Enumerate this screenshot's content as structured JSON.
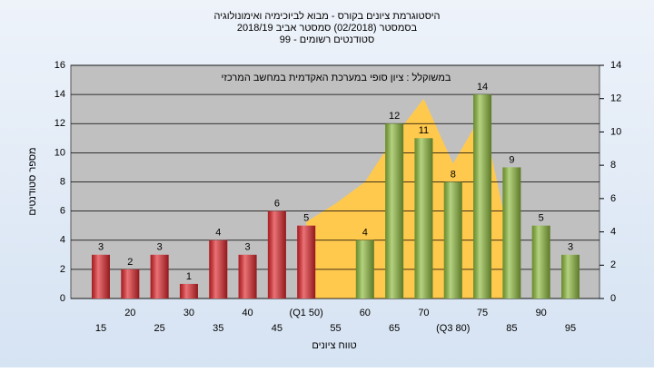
{
  "chart_data": {
    "type": "bar",
    "title": [
      "היסטוגרמת ציונים בקורס - מבוא לביוכימיה ואימונולוגיה",
      "בסמסטר  (02/2018)  סמסטר אביב 2018/19",
      "סטודנטים רשומים - 99"
    ],
    "annotation": "במשוקלל : ציון סופי במערכת האקדמית במחשב המרכזי",
    "y_label": "מספר סטודנטים",
    "x_label": "טווח ציונים",
    "categories": [
      "15",
      "20",
      "25",
      "30",
      "35",
      "40",
      "45",
      "(Q1 50)",
      "55",
      "60",
      "65",
      "70",
      "(Q3 80)",
      "75",
      "85",
      "90",
      "95"
    ],
    "values": [
      3,
      2,
      3,
      1,
      4,
      3,
      6,
      5,
      null,
      4,
      12,
      11,
      8,
      14,
      9,
      5,
      3
    ],
    "bar_colors": [
      "#e0262b",
      "#e0262b",
      "#e0262b",
      "#e0262b",
      "#e0262b",
      "#e0262b",
      "#e0262b",
      "#e0262b",
      null,
      "#8dbb3c",
      "#8dbb3c",
      "#8dbb3c",
      "#8dbb3c",
      "#8dbb3c",
      "#8dbb3c",
      "#8dbb3c",
      "#8dbb3c"
    ],
    "area": {
      "values": [
        null,
        null,
        null,
        null,
        null,
        null,
        null,
        4.6,
        5.7,
        7.0,
        9.7,
        12.0,
        8.1,
        11.1,
        2.9,
        null,
        null
      ],
      "color": "#ffc94d",
      "axis": "y2"
    },
    "ylim": [
      0,
      16
    ],
    "yticks": [
      0,
      2,
      4,
      6,
      8,
      10,
      12,
      14,
      16
    ],
    "y2lim": [
      0,
      14
    ],
    "y2ticks": [
      0,
      2,
      4,
      6,
      8,
      10,
      12,
      14
    ],
    "grid": true
  }
}
